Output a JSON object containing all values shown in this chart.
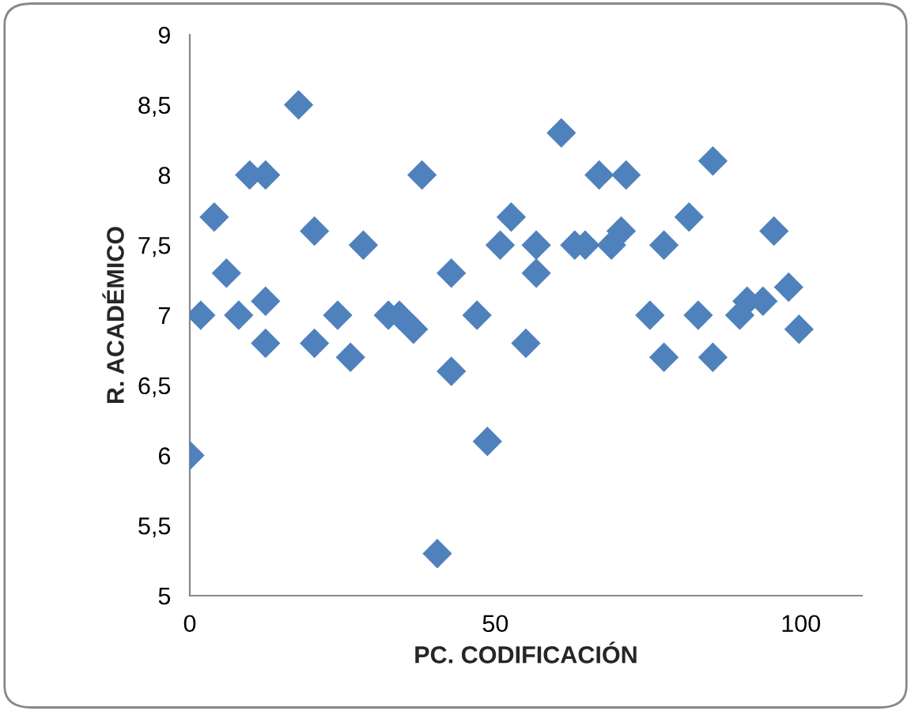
{
  "chart_data": {
    "type": "scatter",
    "xlabel": "PC. CODIFICACIÓN",
    "ylabel": "R. ACADÉMICO",
    "x": [
      0,
      1.8,
      4,
      6,
      8,
      9.8,
      12.4,
      12.4,
      12.4,
      17.8,
      20.4,
      20.4,
      24.2,
      26.3,
      28.4,
      32.5,
      34.3,
      35.8,
      36.6,
      38,
      40.5,
      42.8,
      42.8,
      47,
      48.7,
      50.8,
      52.6,
      55,
      56.7,
      56.7,
      60.8,
      63,
      64.7,
      67,
      69,
      70.6,
      71.4,
      75.3,
      77.6,
      77.6,
      81.7,
      83.2,
      85.6,
      85.6,
      90,
      91.2,
      93.8,
      95.6,
      98,
      99.7
    ],
    "values": [
      6.0,
      7.0,
      7.7,
      7.3,
      7.0,
      8.0,
      8.0,
      7.1,
      6.8,
      8.5,
      7.6,
      6.8,
      7.0,
      6.7,
      7.5,
      7.0,
      7.0,
      null,
      6.9,
      8.0,
      5.3,
      7.3,
      6.6,
      7.0,
      6.1,
      7.5,
      7.7,
      6.8,
      7.3,
      7.5,
      8.3,
      7.5,
      7.5,
      8.0,
      7.5,
      7.6,
      8.0,
      7.0,
      6.7,
      7.5,
      7.7,
      7.0,
      6.7,
      8.1,
      7.0,
      7.1,
      7.1,
      7.6,
      7.2,
      6.9
    ],
    "color": "#4f81bd",
    "marker": "diamond",
    "grid": false,
    "legend": false,
    "xlim": [
      0,
      110
    ],
    "xticks": [
      0,
      50,
      100
    ],
    "ylim": [
      5,
      9
    ],
    "yticks": [
      {
        "value": 5,
        "label": "5"
      },
      {
        "value": 5.5,
        "label": "5,5"
      },
      {
        "value": 6,
        "label": "6"
      },
      {
        "value": 6.5,
        "label": "6,5"
      },
      {
        "value": 7,
        "label": "7"
      },
      {
        "value": 7.5,
        "label": "7,5"
      },
      {
        "value": 8,
        "label": "8"
      },
      {
        "value": 8.5,
        "label": "8,5"
      },
      {
        "value": 9,
        "label": "9"
      }
    ]
  }
}
